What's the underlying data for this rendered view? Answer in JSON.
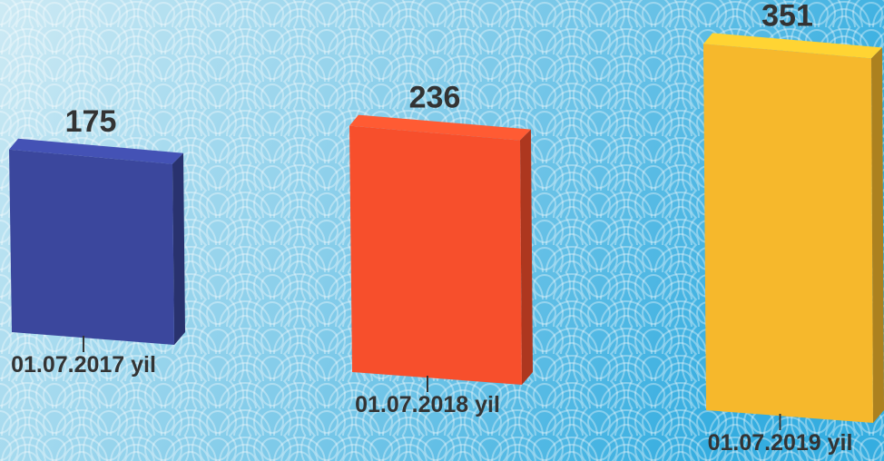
{
  "chart_data": {
    "type": "bar",
    "categories": [
      "01.07.2017 yil",
      "01.07.2018 yil",
      "01.07.2019 yil"
    ],
    "values": [
      175,
      236,
      351
    ],
    "colors": [
      "#3b479d",
      "#f74f2c",
      "#f6b82c"
    ]
  }
}
